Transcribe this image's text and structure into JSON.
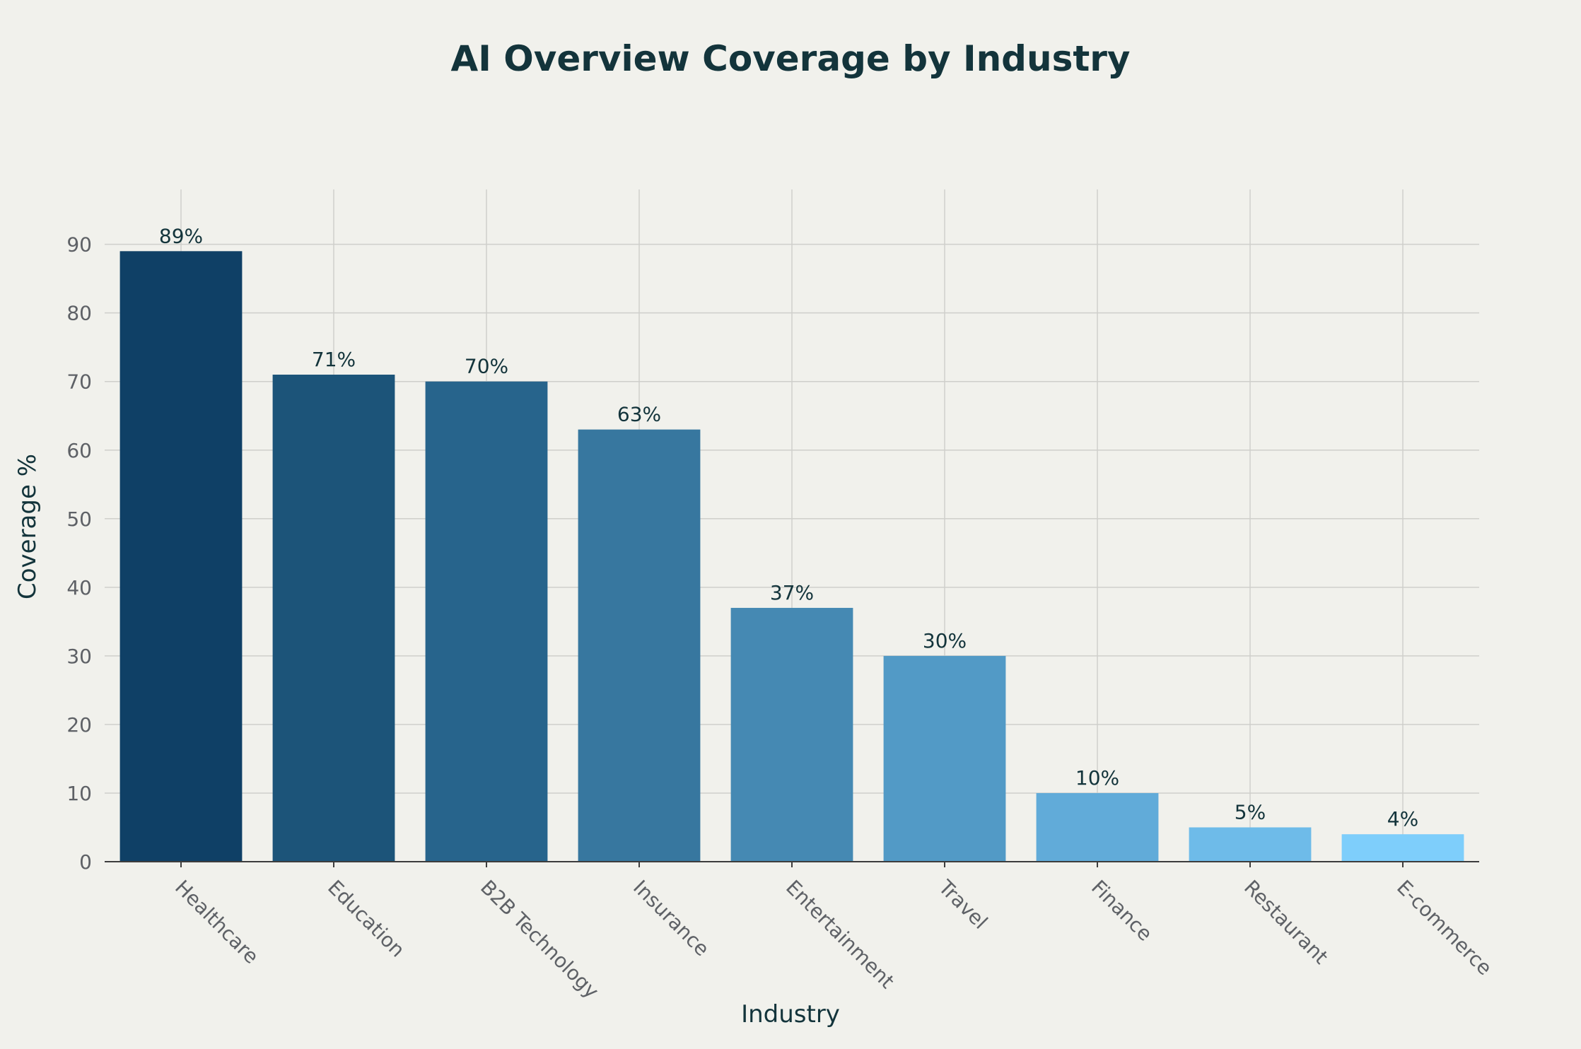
{
  "chart_data": {
    "type": "bar",
    "title": "AI Overview Coverage by Industry",
    "xlabel": "Industry",
    "ylabel": "Coverage %",
    "categories": [
      "Healthcare",
      "Education",
      "B2B Technology",
      "Insurance",
      "Entertainment",
      "Travel",
      "Finance",
      "Restaurant",
      "E-commerce"
    ],
    "values": [
      89,
      71,
      70,
      63,
      37,
      30,
      10,
      5,
      4
    ],
    "data_labels": [
      "89%",
      "71%",
      "70%",
      "63%",
      "37%",
      "30%",
      "10%",
      "5%",
      "4%"
    ],
    "bar_colors": [
      "#0f4066",
      "#1c5479",
      "#27648c",
      "#37779f",
      "#4589b3",
      "#529ac6",
      "#61abd9",
      "#6ebbe9",
      "#7ecefb"
    ],
    "ylim": [
      0,
      98
    ],
    "yticks": [
      0,
      10,
      20,
      30,
      40,
      50,
      60,
      70,
      80,
      90
    ],
    "grid": true,
    "legend": "none"
  }
}
